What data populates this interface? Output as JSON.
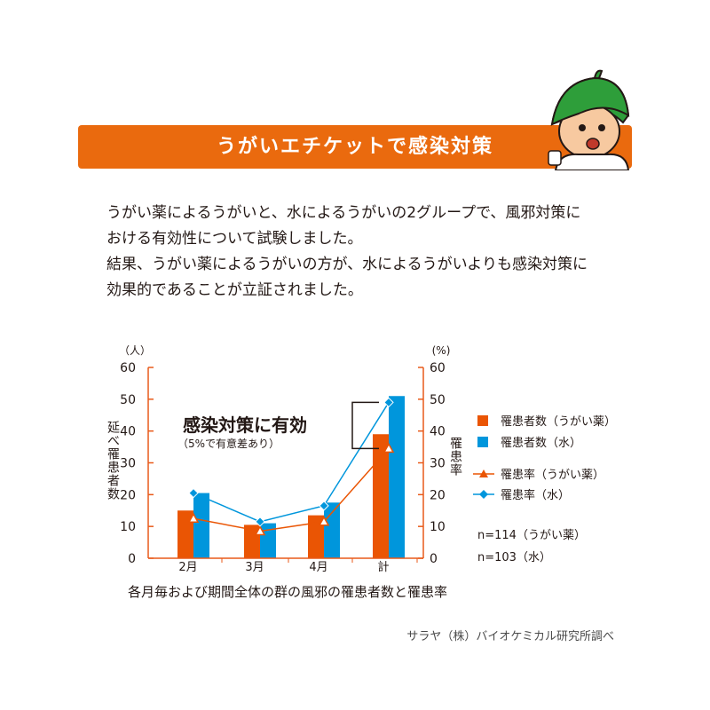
{
  "header": {
    "title": "うがいエチケットで感染対策"
  },
  "intro": {
    "lines": [
      "うがい薬によるうがいと、水によるうがいの2グループで、風邪対策に",
      "おける有効性について試験しました。",
      "結果、うがい薬によるうがいの方が、水によるうがいよりも感染対策に",
      "効果的であることが立証されました。"
    ]
  },
  "chart_data": {
    "type": "bar",
    "categories": [
      "2月",
      "3月",
      "4月",
      "計"
    ],
    "series": [
      {
        "name": "罹患者数（うがい薬）",
        "kind": "bar",
        "axis": "left",
        "color": "#ea5504",
        "values": [
          15,
          10.5,
          13.5,
          39
        ]
      },
      {
        "name": "罹患者数（水）",
        "kind": "bar",
        "axis": "left",
        "color": "#0096dc",
        "values": [
          20.5,
          11,
          17.5,
          51
        ]
      },
      {
        "name": "罹患率（うがい薬）",
        "kind": "line",
        "axis": "right",
        "marker": "triangle",
        "color": "#ea5504",
        "values": [
          12.5,
          8.5,
          11.5,
          34.5
        ]
      },
      {
        "name": "罹患率（水）",
        "kind": "line",
        "axis": "right",
        "marker": "diamond",
        "color": "#0096dc",
        "values": [
          20.5,
          11.5,
          16.5,
          49
        ]
      }
    ],
    "left_axis": {
      "unit": "（人）",
      "label": "延べ罹患者数",
      "ticks": [
        "60",
        "50",
        "40",
        "30",
        "20",
        "10",
        "0"
      ],
      "range": [
        0,
        60
      ]
    },
    "right_axis": {
      "unit": "(%)",
      "label": "罹患率",
      "ticks": [
        "60",
        "50",
        "40",
        "30",
        "20",
        "10",
        "0"
      ],
      "range": [
        0,
        60
      ]
    },
    "annotation": {
      "title": "感染対策に有効",
      "subtitle": "（5%で有意差あり）"
    },
    "notes": [
      "n=114（うがい薬）",
      "n=103（水）"
    ],
    "caption": "各月毎および期間全体の群の風邪の罹患者数と罹患率",
    "legend_position": "right",
    "grid": false,
    "axis_color": "#e85a1a"
  },
  "footer": {
    "credit": "サラヤ（株）バイオケミカル研究所調べ"
  }
}
